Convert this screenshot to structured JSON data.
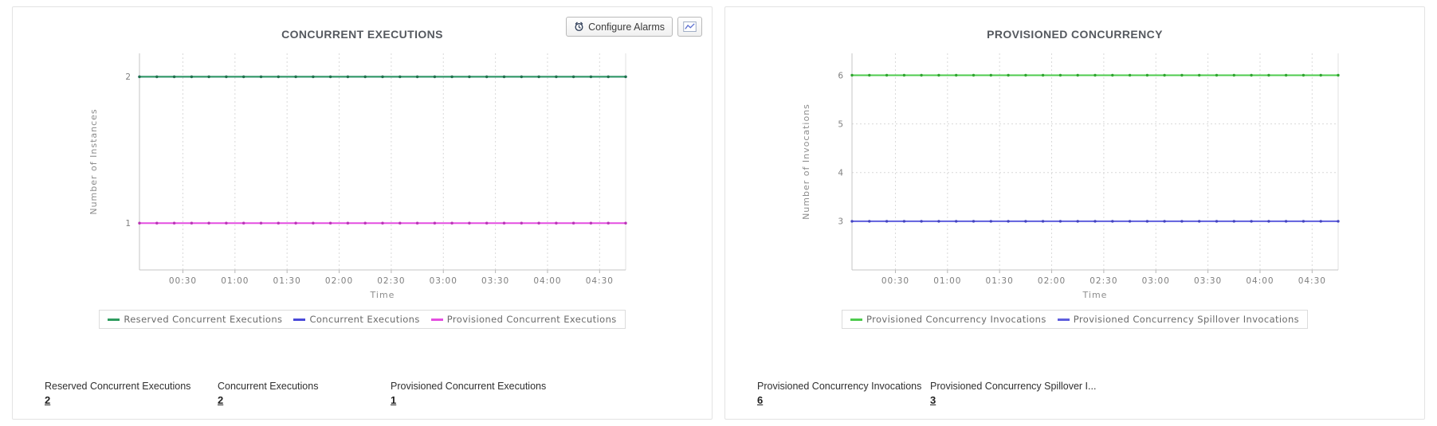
{
  "left_panel": {
    "actions": {
      "configure_alarms_label": "Configure Alarms",
      "configure_alarms_icon": "alarm-clock-icon",
      "export_chart_icon": "line-chart-image-icon"
    }
  },
  "colors": {
    "reserved_concurrent_executions": "#2f9c5f",
    "concurrent_executions": "#4a4ad9",
    "provisioned_concurrent_executions": "#e44fe0",
    "provisioned_concurrency_invocations": "#4ecb4e",
    "provisioned_concurrency_spillover_invocations": "#5e5edd"
  },
  "chart_data": [
    {
      "type": "line",
      "title": "CONCURRENT EXECUTIONS",
      "xlabel": "Time",
      "ylabel": "Number of Instances",
      "legend_position": "bottom",
      "grid": "dotted",
      "x_tick_labels": [
        "00:30",
        "01:00",
        "01:30",
        "02:00",
        "02:30",
        "03:00",
        "03:30",
        "04:00",
        "04:30"
      ],
      "x_tick_minutes": [
        30,
        60,
        90,
        120,
        150,
        180,
        210,
        240,
        270
      ],
      "t_domain": [
        5,
        285
      ],
      "x_minutes": [
        5,
        15,
        25,
        35,
        45,
        55,
        65,
        75,
        85,
        95,
        105,
        115,
        125,
        135,
        145,
        155,
        165,
        175,
        185,
        195,
        205,
        215,
        225,
        235,
        245,
        255,
        265,
        275,
        285
      ],
      "yticks": [
        1,
        2
      ],
      "ylim": [
        0.68,
        2.16
      ],
      "series": [
        {
          "name": "Reserved Concurrent Executions",
          "color": "#2f9c5f",
          "marker": "#20744a",
          "values": [
            2,
            2,
            2,
            2,
            2,
            2,
            2,
            2,
            2,
            2,
            2,
            2,
            2,
            2,
            2,
            2,
            2,
            2,
            2,
            2,
            2,
            2,
            2,
            2,
            2,
            2,
            2,
            2,
            2
          ]
        },
        {
          "name": "Concurrent Executions",
          "color": "#4a4ad9",
          "marker": "#3535b8",
          "values": [
            2,
            2,
            2,
            2,
            2,
            2,
            2,
            2,
            2,
            2,
            2,
            2,
            2,
            2,
            2,
            2,
            2,
            2,
            2,
            2,
            2,
            2,
            2,
            2,
            2,
            2,
            2,
            2,
            2
          ]
        },
        {
          "name": "Provisioned Concurrent Executions",
          "color": "#e44fe0",
          "marker": "#b832b4",
          "values": [
            1,
            1,
            1,
            1,
            1,
            1,
            1,
            1,
            1,
            1,
            1,
            1,
            1,
            1,
            1,
            1,
            1,
            1,
            1,
            1,
            1,
            1,
            1,
            1,
            1,
            1,
            1,
            1,
            1
          ]
        }
      ],
      "stats": [
        {
          "label": "Reserved Concurrent Executions",
          "value": "2"
        },
        {
          "label": "Concurrent Executions",
          "value": "2"
        },
        {
          "label": "Provisioned Concurrent Executions",
          "value": "1"
        }
      ]
    },
    {
      "type": "line",
      "title": "PROVISIONED CONCURRENCY",
      "xlabel": "Time",
      "ylabel": "Number of Invocations",
      "legend_position": "bottom",
      "grid": "dotted",
      "x_tick_labels": [
        "00:30",
        "01:00",
        "01:30",
        "02:00",
        "02:30",
        "03:00",
        "03:30",
        "04:00",
        "04:30"
      ],
      "x_tick_minutes": [
        30,
        60,
        90,
        120,
        150,
        180,
        210,
        240,
        270
      ],
      "t_domain": [
        5,
        285
      ],
      "x_minutes": [
        5,
        15,
        25,
        35,
        45,
        55,
        65,
        75,
        85,
        95,
        105,
        115,
        125,
        135,
        145,
        155,
        165,
        175,
        185,
        195,
        205,
        215,
        225,
        235,
        245,
        255,
        265,
        275,
        285
      ],
      "yticks": [
        3,
        4,
        5,
        6
      ],
      "ylim": [
        2.0,
        6.45
      ],
      "series": [
        {
          "name": "Provisioned Concurrency Invocations",
          "color": "#4ecb4e",
          "marker": "#2fa32f",
          "values": [
            6,
            6,
            6,
            6,
            6,
            6,
            6,
            6,
            6,
            6,
            6,
            6,
            6,
            6,
            6,
            6,
            6,
            6,
            6,
            6,
            6,
            6,
            6,
            6,
            6,
            6,
            6,
            6,
            6
          ]
        },
        {
          "name": "Provisioned Concurrency Spillover Invocations",
          "color": "#5e5edd",
          "marker": "#4343c0",
          "values": [
            3,
            3,
            3,
            3,
            3,
            3,
            3,
            3,
            3,
            3,
            3,
            3,
            3,
            3,
            3,
            3,
            3,
            3,
            3,
            3,
            3,
            3,
            3,
            3,
            3,
            3,
            3,
            3,
            3
          ]
        }
      ],
      "stats": [
        {
          "label": "Provisioned Concurrency Invocations",
          "value": "6"
        },
        {
          "label": "Provisioned Concurrency Spillover I...",
          "value": "3"
        }
      ]
    }
  ]
}
